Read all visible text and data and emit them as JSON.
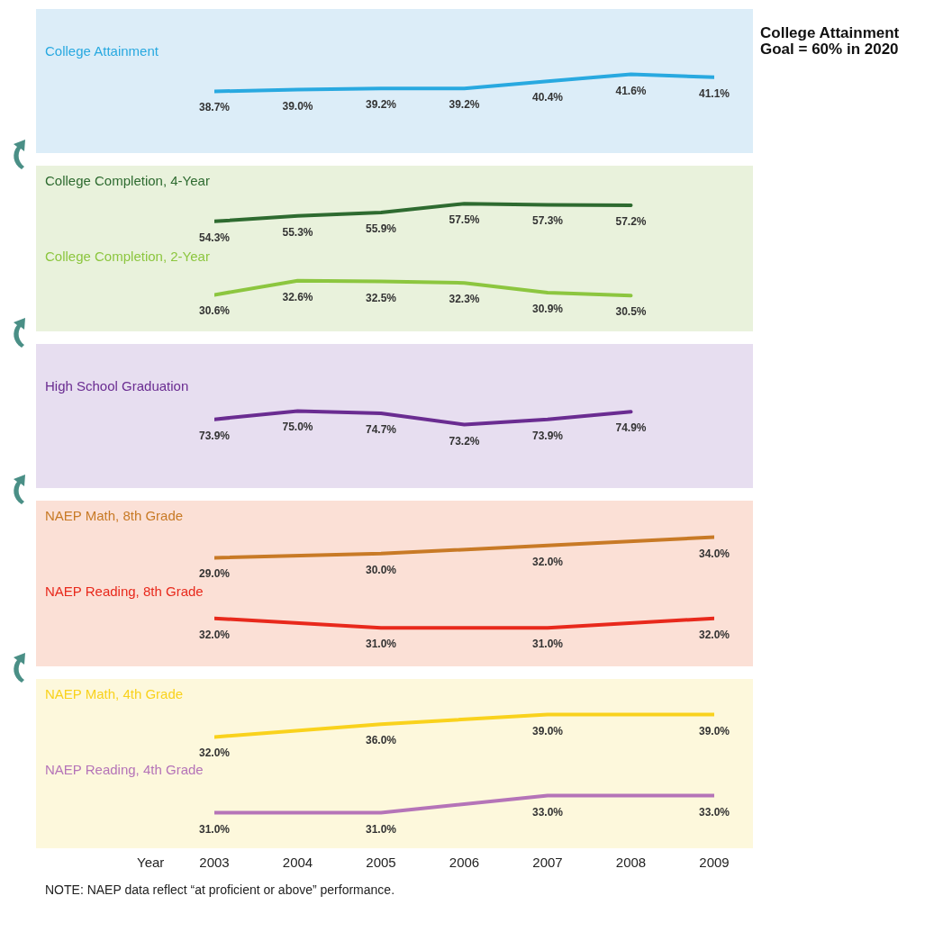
{
  "chart_data": [
    {
      "type": "line",
      "categories": [
        "2003",
        "2004",
        "2005",
        "2006",
        "2007",
        "2008",
        "2009"
      ],
      "marker": "none",
      "tick_labels": false,
      "annotations": [
        "College Attainment Goal = 60% in 2020"
      ],
      "series": [
        {
          "name": "College Attainment",
          "color": "#29a9e0",
          "values": [
            38.7,
            39.0,
            39.2,
            39.2,
            40.4,
            41.6,
            41.1
          ],
          "value_labels": [
            "38.7%",
            "39.0%",
            "39.2%",
            "39.2%",
            "40.4%",
            "41.6%",
            "41.1%"
          ]
        }
      ]
    },
    {
      "type": "line",
      "categories": [
        "2003",
        "2004",
        "2005",
        "2006",
        "2007",
        "2008",
        "2009"
      ],
      "marker": "none",
      "tick_labels": false,
      "series": [
        {
          "name": "College Completion, 4-Year",
          "color": "#2e6b30",
          "values": [
            54.3,
            55.3,
            55.9,
            57.5,
            57.3,
            57.2,
            null
          ],
          "value_labels": [
            "54.3%",
            "55.3%",
            "55.9%",
            "57.5%",
            "57.3%",
            "57.2%",
            null
          ]
        }
      ]
    },
    {
      "type": "line",
      "categories": [
        "2003",
        "2004",
        "2005",
        "2006",
        "2007",
        "2008",
        "2009"
      ],
      "marker": "none",
      "tick_labels": false,
      "series": [
        {
          "name": "College Completion, 2-Year",
          "color": "#8cc63f",
          "values": [
            30.6,
            32.6,
            32.5,
            32.3,
            30.9,
            30.5,
            null
          ],
          "value_labels": [
            "30.6%",
            "32.6%",
            "32.5%",
            "32.3%",
            "30.9%",
            "30.5%",
            null
          ]
        }
      ]
    },
    {
      "type": "line",
      "categories": [
        "2003",
        "2004",
        "2005",
        "2006",
        "2007",
        "2008",
        "2009"
      ],
      "marker": "none",
      "tick_labels": false,
      "series": [
        {
          "name": "High School Graduation",
          "color": "#6a2c91",
          "values": [
            73.9,
            75.0,
            74.7,
            73.2,
            73.9,
            74.9,
            null
          ],
          "value_labels": [
            "73.9%",
            "75.0%",
            "74.7%",
            "73.2%",
            "73.9%",
            "74.9%",
            null
          ]
        }
      ]
    },
    {
      "type": "line",
      "categories": [
        "2003",
        "2004",
        "2005",
        "2006",
        "2007",
        "2008",
        "2009"
      ],
      "marker": "none",
      "tick_labels": false,
      "series": [
        {
          "name": "NAEP Math, 8th Grade",
          "color": "#c87a26",
          "values": [
            29.0,
            null,
            30.0,
            null,
            32.0,
            null,
            34.0
          ],
          "value_labels": [
            "29.0%",
            null,
            "30.0%",
            null,
            "32.0%",
            null,
            "34.0%"
          ]
        }
      ]
    },
    {
      "type": "line",
      "categories": [
        "2003",
        "2004",
        "2005",
        "2006",
        "2007",
        "2008",
        "2009"
      ],
      "marker": "none",
      "tick_labels": false,
      "series": [
        {
          "name": "NAEP Reading, 8th Grade",
          "color": "#e8291c",
          "values": [
            32.0,
            null,
            31.0,
            null,
            31.0,
            null,
            32.0
          ],
          "value_labels": [
            "32.0%",
            null,
            "31.0%",
            null,
            "31.0%",
            null,
            "32.0%"
          ]
        }
      ]
    },
    {
      "type": "line",
      "categories": [
        "2003",
        "2004",
        "2005",
        "2006",
        "2007",
        "2008",
        "2009"
      ],
      "marker": "none",
      "tick_labels": false,
      "series": [
        {
          "name": "NAEP Math, 4th Grade",
          "color": "#f9d21d",
          "values": [
            32.0,
            null,
            36.0,
            null,
            39.0,
            null,
            39.0
          ],
          "value_labels": [
            "32.0%",
            null,
            "36.0%",
            null,
            "39.0%",
            null,
            "39.0%"
          ]
        }
      ]
    },
    {
      "type": "line",
      "categories": [
        "2003",
        "2004",
        "2005",
        "2006",
        "2007",
        "2008",
        "2009"
      ],
      "marker": "none",
      "tick_labels": "x",
      "xlabel": "Year",
      "annotations": [
        "NOTE: NAEP data reflect “at proficient or above” performance."
      ],
      "series": [
        {
          "name": "NAEP Reading, 4th Grade",
          "color": "#b574b8",
          "values": [
            31.0,
            null,
            31.0,
            null,
            33.0,
            null,
            33.0
          ],
          "value_labels": [
            "31.0%",
            null,
            "31.0%",
            null,
            "33.0%",
            null,
            "33.0%"
          ]
        }
      ]
    }
  ]
}
